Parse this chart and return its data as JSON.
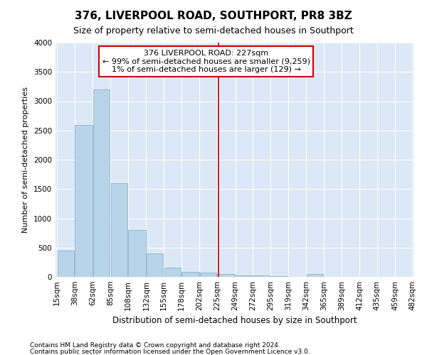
{
  "title": "376, LIVERPOOL ROAD, SOUTHPORT, PR8 3BZ",
  "subtitle": "Size of property relative to semi-detached houses in Southport",
  "xlabel": "Distribution of semi-detached houses by size in Southport",
  "ylabel": "Number of semi-detached properties",
  "footer_lines": [
    "Contains HM Land Registry data © Crown copyright and database right 2024.",
    "Contains public sector information licensed under the Open Government Licence v3.0."
  ],
  "annotation_title": "376 LIVERPOOL ROAD: 227sqm",
  "annotation_line1": "← 99% of semi-detached houses are smaller (9,259)",
  "annotation_line2": "1% of semi-detached houses are larger (129) →",
  "property_size": 227,
  "bin_edges": [
    15,
    38,
    62,
    85,
    108,
    132,
    155,
    178,
    202,
    225,
    249,
    272,
    295,
    319,
    342,
    365,
    389,
    412,
    435,
    459,
    482
  ],
  "bar_values": [
    450,
    2600,
    3200,
    1600,
    800,
    400,
    160,
    80,
    70,
    50,
    30,
    20,
    10,
    5,
    50,
    3,
    3,
    2,
    2,
    2
  ],
  "bar_color": "#b8d4e8",
  "bar_edge_color": "#7aaac8",
  "vline_color": "#cc0000",
  "vline_x": 227,
  "box_color": "#cc0000",
  "ylim": [
    0,
    4000
  ],
  "yticks": [
    0,
    500,
    1000,
    1500,
    2000,
    2500,
    3000,
    3500,
    4000
  ],
  "bg_color": "#dce8f5",
  "title_fontsize": 11,
  "subtitle_fontsize": 9,
  "axis_label_fontsize": 8,
  "tick_fontsize": 7.5,
  "annotation_fontsize": 8,
  "footer_fontsize": 6.5
}
